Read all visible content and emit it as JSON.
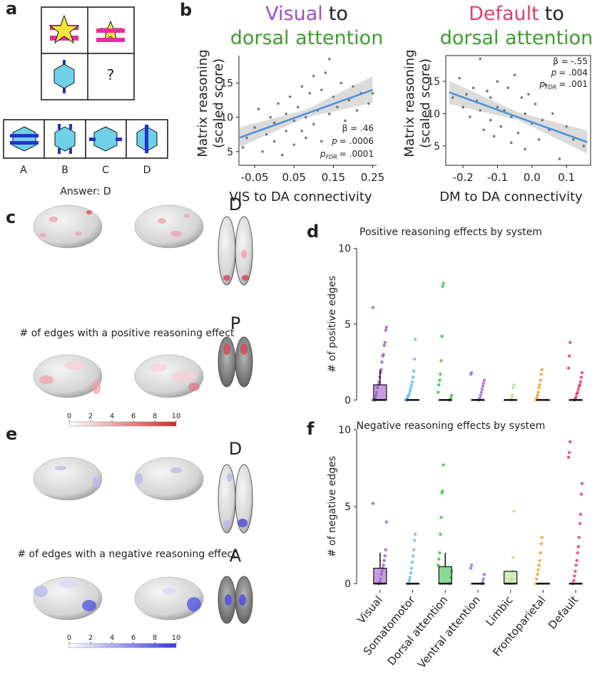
{
  "panel_labels": [
    "a",
    "b",
    "c",
    "d",
    "e",
    "f"
  ],
  "puzzle": {
    "question_mark": "?",
    "options": [
      "A",
      "B",
      "C",
      "D"
    ],
    "answer": "Answer: D"
  },
  "brain_maps": [
    {
      "caption": "# of edges with a positive reasoning effect",
      "views": [
        "D",
        "P"
      ],
      "colorbar": {
        "lim": [
          0,
          10
        ],
        "ticks": [
          0,
          2,
          4,
          6,
          8,
          10
        ],
        "colors": [
          "#ffffff",
          "#d42a2a"
        ]
      }
    },
    {
      "caption": "# of edges with a negative reasoning effect",
      "views": [
        "D",
        "A"
      ],
      "colorbar": {
        "lim": [
          0,
          10
        ],
        "ticks": [
          0,
          2,
          4,
          6,
          8,
          10
        ],
        "colors": [
          "#ffffff",
          "#3a3ae0"
        ]
      }
    }
  ],
  "chart_data": [
    {
      "type": "scatter",
      "title_lines": [
        [
          {
            "text": "Visual",
            "color": "#9b4fd1"
          },
          {
            "text": "to"
          }
        ],
        [
          {
            "text": "dorsal attention",
            "color": "#3c9e2c"
          }
        ]
      ],
      "xlabel": "VIS to DA connectivity",
      "ylabel": [
        "Matrix reasoning",
        "(scaled score)"
      ],
      "xlim": [
        -0.09,
        0.26
      ],
      "xticks": [
        -0.05,
        0.05,
        0.15,
        0.25
      ],
      "ylim": [
        3,
        19
      ],
      "yticks": [
        5,
        10,
        15
      ],
      "color": "#777777",
      "fit_color": "#4a90d9",
      "frame": false,
      "stats": [
        {
          "text": "β = .46"
        },
        {
          "italic": "p",
          "text": "= .0006"
        },
        {
          "italic": "p",
          "sub": "FDR",
          "text": "= .0001"
        }
      ],
      "fit": {
        "x": [
          -0.09,
          0.25
        ],
        "y": [
          7.0,
          14.0
        ]
      },
      "ci": {
        "x": [
          -0.09,
          0.08,
          0.25
        ],
        "lower": [
          5.6,
          10.0,
          12.1
        ],
        "upper": [
          8.5,
          11.1,
          16.0
        ]
      },
      "x": [
        -0.08,
        -0.07,
        -0.05,
        -0.04,
        -0.03,
        -0.02,
        -0.01,
        0.0,
        0.0,
        0.01,
        0.02,
        0.03,
        0.03,
        0.04,
        0.05,
        0.05,
        0.06,
        0.07,
        0.07,
        0.08,
        0.08,
        0.09,
        0.1,
        0.1,
        0.11,
        0.12,
        0.12,
        0.13,
        0.14,
        0.14,
        0.15,
        0.16,
        0.17,
        0.18,
        0.19,
        0.2,
        0.21,
        0.22,
        0.24,
        0.25
      ],
      "y": [
        5.6,
        7.0,
        8.5,
        11.2,
        5.0,
        7.5,
        10.0,
        9.2,
        6.5,
        12.0,
        4.5,
        10.5,
        8.0,
        13.0,
        9.5,
        6.0,
        11.5,
        8.0,
        14.5,
        10.0,
        7.0,
        13.5,
        16.0,
        9.0,
        11.0,
        14.0,
        6.5,
        16.5,
        10.5,
        18.5,
        13.0,
        11.5,
        15.0,
        9.5,
        12.5,
        14.5,
        11.0,
        13.5,
        12.0,
        13.5
      ]
    },
    {
      "type": "scatter",
      "title_lines": [
        [
          {
            "text": "Default",
            "color": "#e0406e"
          },
          {
            "text": "to"
          }
        ],
        [
          {
            "text": "dorsal attention",
            "color": "#3c9e2c"
          }
        ]
      ],
      "xlabel": "DM to DA connectivity",
      "ylabel": [
        "Matrix reasoning",
        "(scaled score)"
      ],
      "xlim": [
        -0.25,
        0.17
      ],
      "xticks": [
        -0.2,
        -0.1,
        {
          "value": 0,
          "label": "0.0"
        },
        0.1
      ],
      "ylim": [
        2,
        19
      ],
      "yticks": [
        5,
        10,
        15
      ],
      "color": "#777777",
      "fit_color": "#4a90d9",
      "frame": true,
      "stats": [
        {
          "text": "β = -.55"
        },
        {
          "italic": "p",
          "text": "= .004"
        },
        {
          "italic": "p",
          "sub": "FDR",
          "text": "= .001"
        }
      ],
      "fit": {
        "x": [
          -0.24,
          0.16
        ],
        "y": [
          13.3,
          5.6
        ]
      },
      "ci": {
        "x": [
          -0.24,
          -0.04,
          0.16
        ],
        "lower": [
          11.5,
          9.0,
          3.8
        ],
        "upper": [
          15.1,
          10.2,
          7.4
        ]
      },
      "x": [
        -0.23,
        -0.21,
        -0.2,
        -0.19,
        -0.18,
        -0.17,
        -0.16,
        -0.15,
        -0.15,
        -0.14,
        -0.13,
        -0.12,
        -0.12,
        -0.11,
        -0.1,
        -0.1,
        -0.09,
        -0.08,
        -0.07,
        -0.06,
        -0.06,
        -0.05,
        -0.04,
        -0.03,
        -0.02,
        -0.02,
        -0.01,
        0.0,
        0.01,
        0.02,
        0.03,
        0.04,
        0.05,
        0.06,
        0.08,
        0.1,
        0.12,
        0.15
      ],
      "y": [
        12.5,
        15.5,
        11.0,
        13.0,
        9.5,
        14.0,
        12.0,
        18.5,
        10.5,
        7.5,
        13.5,
        9.0,
        12.5,
        6.5,
        11.0,
        15.0,
        8.0,
        10.5,
        14.0,
        5.5,
        9.5,
        16.0,
        7.0,
        12.5,
        10.0,
        4.5,
        13.0,
        8.5,
        11.5,
        6.0,
        9.0,
        14.5,
        7.5,
        10.0,
        3.0,
        8.0,
        6.0,
        5.0
      ]
    },
    {
      "type": "box",
      "title": "Positive reasoning effects by system",
      "ylabel": "# of positive edges",
      "ylim": [
        -0.5,
        10.5
      ],
      "yticks": [
        0,
        5,
        10
      ],
      "categories": [
        null,
        null,
        null,
        null,
        null,
        null,
        null
      ],
      "colors": [
        "#a25ec9",
        "#5fbfe6",
        "#3ec24f",
        "#a56ccf",
        "#b8e08c",
        "#f0a02c",
        "#e8406a"
      ],
      "q1": [
        0,
        0,
        0,
        0,
        0,
        0,
        0
      ],
      "median": [
        0,
        0,
        0,
        0,
        0,
        0,
        0
      ],
      "q3": [
        1,
        0,
        0,
        0,
        0,
        0,
        0
      ],
      "whisker": [
        2,
        0,
        0,
        0,
        0,
        0,
        0
      ],
      "points": [
        [
          6.1,
          4.8,
          4.6,
          3.8,
          3.6,
          3.0,
          2.9,
          2.5,
          2.0,
          1.8,
          1.5,
          1.2,
          1.0,
          0.8,
          0.5,
          0.3,
          0.1,
          0,
          0,
          0
        ],
        [
          4.0,
          2.7,
          1.9,
          1.5,
          1.2,
          1.0,
          0.8,
          0.6,
          0.4,
          0.3,
          0.2,
          0.1,
          0,
          0
        ],
        [
          7.7,
          7.5,
          4.2,
          2.6,
          1.7,
          1.3,
          1.0,
          0.5,
          0.3,
          0.1,
          0,
          0
        ],
        [
          1.8,
          1.7,
          1.3,
          1.1,
          0.9,
          0.7,
          0.5,
          0.3,
          0.1,
          0,
          0
        ],
        [
          1.0,
          0.8,
          0.3,
          0.1,
          0
        ],
        [
          2.0,
          1.7,
          1.3,
          1.0,
          0.8,
          0.5,
          0.3,
          0.1,
          0
        ],
        [
          3.8,
          2.9,
          2.1,
          1.8,
          1.5,
          1.2,
          1.0,
          0.9,
          0.7,
          0.5,
          0.4,
          0.2,
          0.1,
          0
        ]
      ]
    },
    {
      "type": "box",
      "title": "Negative reasoning effects by system",
      "ylabel": "# of negative edges",
      "ylim": [
        -0.5,
        10.5
      ],
      "yticks": [
        0,
        5,
        10
      ],
      "categories": [
        "Visual",
        "Somatomotor",
        "Dorsal attention",
        "Ventral attention",
        "Limbic",
        "Frontoparietal",
        "Default"
      ],
      "colors": [
        "#a25ec9",
        "#5fbfe6",
        "#3ec24f",
        "#a56ccf",
        "#b8e08c",
        "#f0a02c",
        "#e8406a"
      ],
      "q1": [
        0,
        0,
        0,
        0,
        0,
        0,
        0
      ],
      "median": [
        0,
        0,
        0,
        0,
        0,
        0,
        0
      ],
      "q3": [
        1,
        0,
        1.1,
        0,
        0.8,
        0,
        0
      ],
      "whisker": [
        2,
        0,
        2,
        0,
        0.8,
        0,
        0
      ],
      "points": [
        [
          5.2,
          4.0,
          2.2,
          1.8,
          1.5,
          1.2,
          1.0,
          0.8,
          0.6,
          0.3,
          0.1,
          0
        ],
        [
          3.2,
          2.8,
          2.2,
          1.8,
          1.4,
          1.0,
          0.7,
          0.4,
          0.2,
          0
        ],
        [
          7.7,
          6.0,
          5.9,
          4.3,
          3.2,
          2.0,
          1.6,
          1.2,
          0.8,
          0.4,
          0
        ],
        [
          1.2,
          1.0,
          0.6,
          0.3,
          0.1,
          0
        ],
        [
          4.7,
          1.7,
          0.8,
          0.3,
          0
        ],
        [
          3.0,
          2.6,
          2.0,
          1.5,
          1.2,
          0.9,
          0.6,
          0.3,
          0
        ],
        [
          9.2,
          8.5,
          8.2,
          6.5,
          5.8,
          4.5,
          3.9,
          3.0,
          2.4,
          2.0,
          1.5,
          1.2,
          0.8,
          0.5,
          0.2,
          0
        ]
      ]
    }
  ]
}
